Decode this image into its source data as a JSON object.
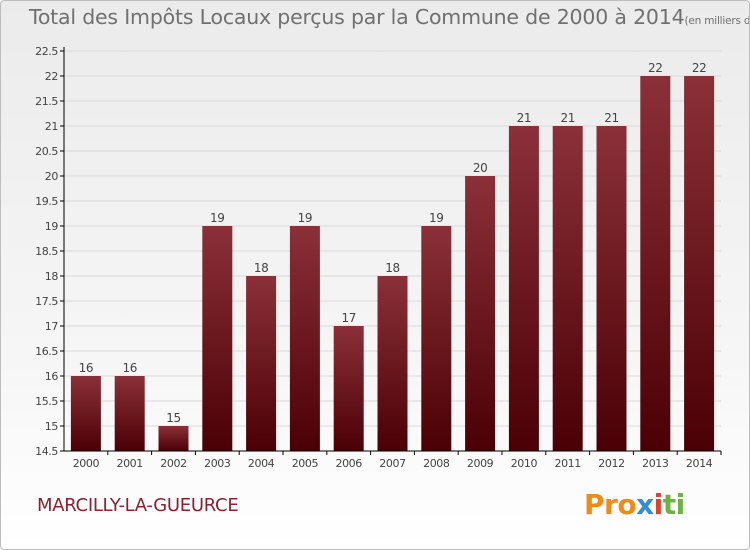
{
  "header": {
    "title": "Total des Impôts Locaux perçus par la Commune de 2000 à 2014",
    "unit": "(en milliers d'€)"
  },
  "footer": {
    "commune": "MARCILLY-LA-GUEURCE",
    "logo_parts": [
      "Pro",
      "x",
      "i",
      "ti"
    ]
  },
  "colors": {
    "bar_top": "#8b3038",
    "bar_bottom": "#4a0005",
    "axis": "#000000",
    "grid": "#d9d9d9",
    "text": "#444444"
  },
  "chart_data": {
    "type": "bar",
    "title": "Total des Impôts Locaux perçus par la Commune de 2000 à 2014",
    "xlabel": "",
    "ylabel": "",
    "categories": [
      "2000",
      "2001",
      "2002",
      "2003",
      "2004",
      "2005",
      "2006",
      "2007",
      "2008",
      "2009",
      "2010",
      "2011",
      "2012",
      "2013",
      "2014"
    ],
    "values": [
      16,
      16,
      15,
      19,
      18,
      19,
      17,
      18,
      19,
      20,
      21,
      21,
      21,
      22,
      22
    ],
    "labels": [
      "16",
      "16",
      "15",
      "19",
      "18",
      "19",
      "17",
      "18",
      "19",
      "20",
      "21",
      "21",
      "21",
      "22",
      "22"
    ],
    "ylim": [
      14.5,
      22.5
    ],
    "yticks": [
      "14.5",
      "15",
      "15.5",
      "16",
      "16.5",
      "17",
      "17.5",
      "18",
      "18.5",
      "19",
      "19.5",
      "20",
      "20.5",
      "21",
      "21.5",
      "22",
      "22.5"
    ],
    "grid": true
  }
}
